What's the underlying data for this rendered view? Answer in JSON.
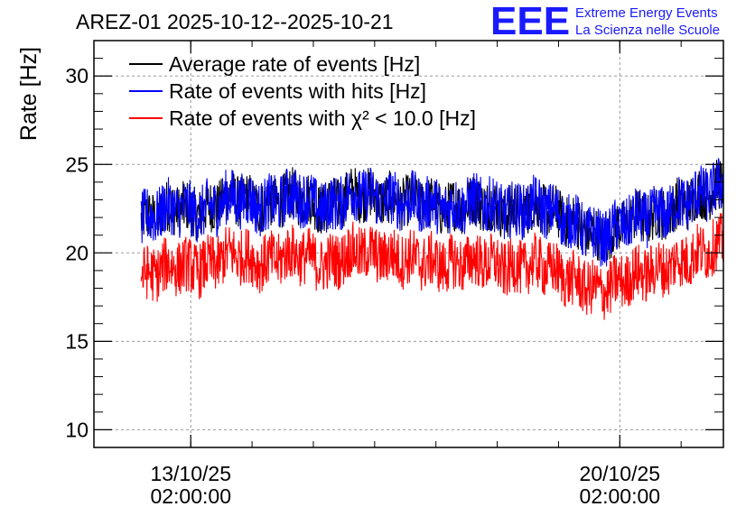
{
  "chart_data": {
    "type": "line",
    "title": "AREZ-01 2025-10-12--2025-10-21",
    "xlabel": "",
    "ylabel": "Rate [Hz]",
    "ylim": [
      9,
      32
    ],
    "yticks": [
      10,
      15,
      20,
      25,
      30
    ],
    "xlim_days_from_start": [
      -0.77,
      9.5
    ],
    "x_ticks": [
      {
        "day": 0.81,
        "date": "13/10/25",
        "time": "02:00:00"
      },
      {
        "day": 7.81,
        "date": "20/10/25",
        "time": "02:00:00"
      }
    ],
    "x": [
      0.0,
      0.5,
      1.0,
      1.5,
      2.0,
      2.5,
      3.0,
      3.5,
      4.0,
      4.5,
      5.0,
      5.5,
      6.0,
      6.5,
      7.0,
      7.5,
      8.0,
      8.5,
      9.0,
      9.5
    ],
    "legend_position": "top-left",
    "series": [
      {
        "name": "Average rate of events [Hz]",
        "color": "#000000",
        "values": [
          21.8,
          22.6,
          22.3,
          23.2,
          22.6,
          23.3,
          22.5,
          23.4,
          23.0,
          22.9,
          22.5,
          22.9,
          22.3,
          22.7,
          21.8,
          20.8,
          21.9,
          22.2,
          23.1,
          23.8
        ]
      },
      {
        "name": "Rate of events with hits [Hz]",
        "color": "#0000ff",
        "values": [
          21.8,
          22.6,
          22.3,
          23.2,
          22.6,
          23.3,
          22.5,
          23.4,
          23.0,
          22.9,
          22.5,
          22.9,
          22.3,
          22.7,
          21.8,
          20.8,
          21.9,
          22.2,
          23.1,
          23.8
        ]
      },
      {
        "name": "Rate of events with χ² < 10.0 [Hz]",
        "color": "#ff0000",
        "values": [
          18.6,
          19.3,
          19.1,
          20.0,
          19.4,
          20.0,
          19.3,
          20.1,
          19.8,
          19.6,
          19.3,
          19.6,
          19.1,
          19.4,
          18.5,
          17.8,
          18.7,
          19.1,
          19.8,
          20.6
        ]
      }
    ]
  },
  "logo": {
    "text": "EEE",
    "line1": "Extreme Energy Events",
    "line2": "La Scienza nelle Scuole",
    "color": "#1a1aff"
  }
}
